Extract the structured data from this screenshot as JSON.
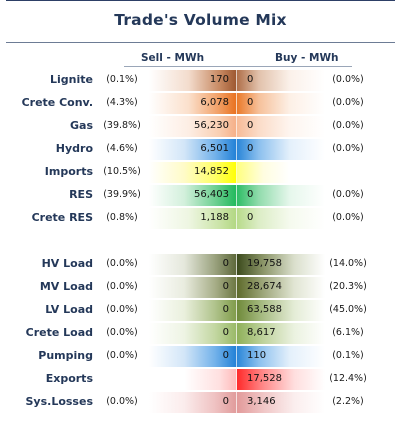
{
  "title": "Trade's Volume Mix",
  "headers": {
    "sell": "Sell - MWh",
    "buy": "Buy - MWh"
  },
  "colors": {
    "lignite": "#a0522d",
    "crete_conv": "#e8701a",
    "gas": "#f5a070",
    "hydro": "#1f7fd6",
    "imports": "#ffff00",
    "res": "#1fb85a",
    "crete_res": "#93c64e",
    "hv_load": "#3b4a1c",
    "mv_load": "#5d6a2a",
    "lv_load": "#6f8a3a",
    "crete_load": "#8fb05a",
    "pumping": "#1f7fd6",
    "exports": "#ff2a2a",
    "sys_losses": "#e09090"
  },
  "rows_top": [
    {
      "label": "Lignite",
      "sell_pct": "(0.1%)",
      "sell": "170",
      "buy": "0",
      "buy_pct": "(0.0%)"
    },
    {
      "label": "Crete Conv.",
      "sell_pct": "(4.3%)",
      "sell": "6,078",
      "buy": "0",
      "buy_pct": "(0.0%)"
    },
    {
      "label": "Gas",
      "sell_pct": "(39.8%)",
      "sell": "56,230",
      "buy": "0",
      "buy_pct": "(0.0%)"
    },
    {
      "label": "Hydro",
      "sell_pct": "(4.6%)",
      "sell": "6,501",
      "buy": "0",
      "buy_pct": "(0.0%)"
    },
    {
      "label": "Imports",
      "sell_pct": "(10.5%)",
      "sell": "14,852",
      "buy": "",
      "buy_pct": ""
    },
    {
      "label": "RES",
      "sell_pct": "(39.9%)",
      "sell": "56,403",
      "buy": "0",
      "buy_pct": "(0.0%)"
    },
    {
      "label": "Crete RES",
      "sell_pct": "(0.8%)",
      "sell": "1,188",
      "buy": "0",
      "buy_pct": "(0.0%)"
    }
  ],
  "rows_bottom": [
    {
      "label": "HV Load",
      "sell_pct": "(0.0%)",
      "sell": "0",
      "buy": "19,758",
      "buy_pct": "(14.0%)"
    },
    {
      "label": "MV Load",
      "sell_pct": "(0.0%)",
      "sell": "0",
      "buy": "28,674",
      "buy_pct": "(20.3%)"
    },
    {
      "label": "LV Load",
      "sell_pct": "(0.0%)",
      "sell": "0",
      "buy": "63,588",
      "buy_pct": "(45.0%)"
    },
    {
      "label": "Crete Load",
      "sell_pct": "(0.0%)",
      "sell": "0",
      "buy": "8,617",
      "buy_pct": "(6.1%)"
    },
    {
      "label": "Pumping",
      "sell_pct": "(0.0%)",
      "sell": "0",
      "buy": "110",
      "buy_pct": "(0.1%)"
    },
    {
      "label": "Exports",
      "sell_pct": "",
      "sell": "",
      "buy": "17,528",
      "buy_pct": "(12.4%)"
    },
    {
      "label": "Sys.Losses",
      "sell_pct": "(0.0%)",
      "sell": "0",
      "buy": "3,146",
      "buy_pct": "(2.2%)"
    }
  ]
}
